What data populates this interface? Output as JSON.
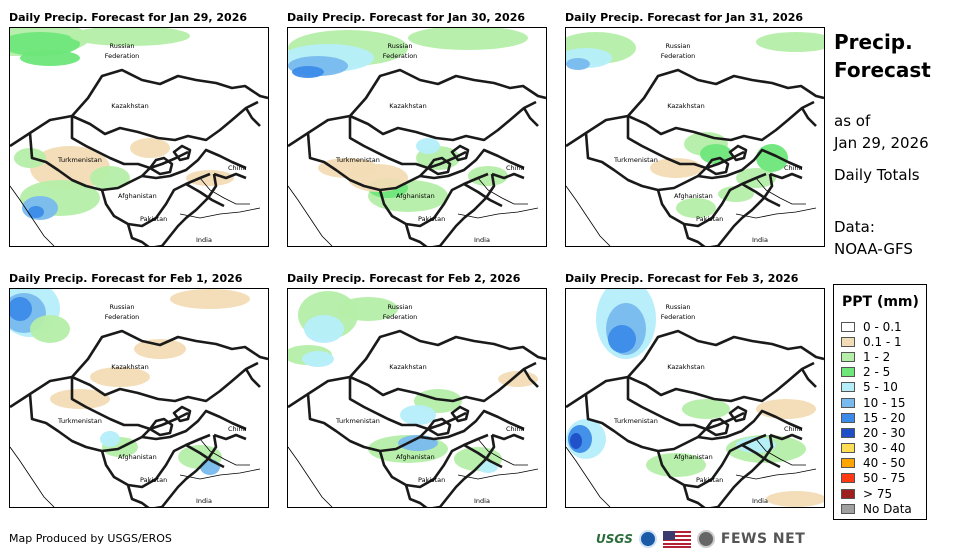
{
  "panels": [
    {
      "title": "Daily Precip. Forecast for Jan 29, 2026"
    },
    {
      "title": "Daily Precip. Forecast for Jan 30, 2026"
    },
    {
      "title": "Daily Precip. Forecast for Jan 31, 2026"
    },
    {
      "title": "Daily Precip. Forecast for Feb 1, 2026"
    },
    {
      "title": "Daily Precip. Forecast for Feb 2, 2026"
    },
    {
      "title": "Daily Precip. Forecast for Feb 3, 2026"
    }
  ],
  "map_labels": {
    "russia_line1": "Russian",
    "russia_line2": "Federation",
    "kazakhstan": "Kazakhstan",
    "turkmenistan": "Turkmenistan",
    "afghanistan": "Afghanistan",
    "pakistan": "Pakistan",
    "china": "China",
    "india": "India"
  },
  "side": {
    "title_line1": "Precip.",
    "title_line2": "Forecast",
    "asof_line1": "as of",
    "asof_line2": "Jan 29, 2026",
    "totals": "Daily Totals",
    "data_line1": "Data:",
    "data_line2": "NOAA-GFS"
  },
  "legend": {
    "title": "PPT (mm)",
    "items": [
      {
        "label": "0 - 0.1",
        "color": "#ffffff"
      },
      {
        "label": "0.1 - 1",
        "color": "#f2dcb5"
      },
      {
        "label": "1 - 2",
        "color": "#b5eea8"
      },
      {
        "label": "2 - 5",
        "color": "#6ee67a"
      },
      {
        "label": "5 - 10",
        "color": "#b5eefa"
      },
      {
        "label": "10 - 15",
        "color": "#78b9ee"
      },
      {
        "label": "15 - 20",
        "color": "#3c8be8"
      },
      {
        "label": "20 - 30",
        "color": "#1f4fc8"
      },
      {
        "label": "30 - 40",
        "color": "#ffdd55"
      },
      {
        "label": "40 - 50",
        "color": "#ffa500"
      },
      {
        "label": "50 - 75",
        "color": "#ff3a10"
      },
      {
        "label": "> 75",
        "color": "#a02020"
      },
      {
        "label": "No Data",
        "color": "#a0a0a0"
      }
    ]
  },
  "footer": {
    "credit": "Map Produced by USGS/EROS",
    "usgs": "USGS",
    "fews": "FEWS NET"
  }
}
